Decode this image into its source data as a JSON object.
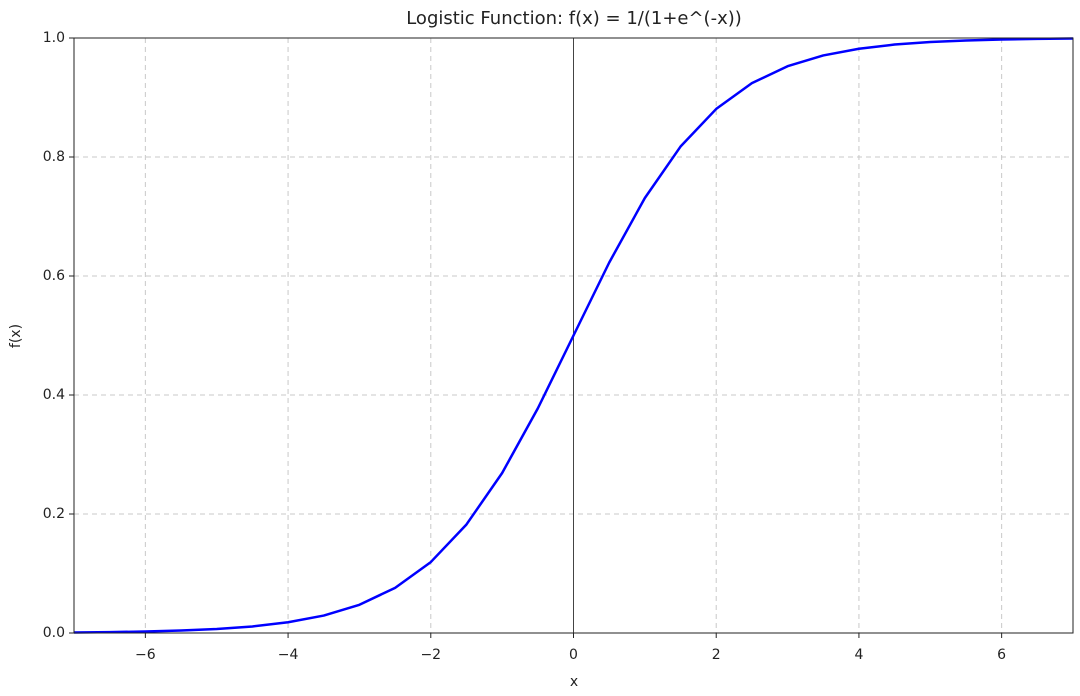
{
  "chart_data": {
    "type": "line",
    "title": "Logistic Function: f(x) = 1/(1+e^(-x))",
    "x_label": "x",
    "y_label": "f(x)",
    "x": [
      -7,
      -6.5,
      -6,
      -5.5,
      -5,
      -4.5,
      -4,
      -3.5,
      -3,
      -2.5,
      -2,
      -1.5,
      -1,
      -0.5,
      0,
      0.5,
      1,
      1.5,
      2,
      2.5,
      3,
      3.5,
      4,
      4.5,
      5,
      5.5,
      6,
      6.5,
      7
    ],
    "series": [
      {
        "color": "#0000ff",
        "values": [
          0.0009,
          0.0015,
          0.0025,
          0.0041,
          0.0067,
          0.011,
          0.018,
          0.0293,
          0.0474,
          0.0759,
          0.1192,
          0.1824,
          0.2689,
          0.3775,
          0.5,
          0.6225,
          0.7311,
          0.8176,
          0.8808,
          0.9241,
          0.9526,
          0.9707,
          0.982,
          0.989,
          0.9933,
          0.9959,
          0.9975,
          0.9985,
          0.9991
        ]
      }
    ],
    "xlim": [
      -7,
      7
    ],
    "ylim": [
      0,
      1
    ],
    "xticks": [
      {
        "value": -6,
        "label": "−6"
      },
      {
        "value": -4,
        "label": "−4"
      },
      {
        "value": -2,
        "label": "−2"
      },
      0,
      2,
      4,
      6
    ],
    "yticks": [
      {
        "value": 0,
        "label": "0.0"
      },
      0.2,
      0.4,
      0.6,
      0.8,
      {
        "value": 1,
        "label": "1.0"
      }
    ],
    "grid": true,
    "axvline": 0
  }
}
